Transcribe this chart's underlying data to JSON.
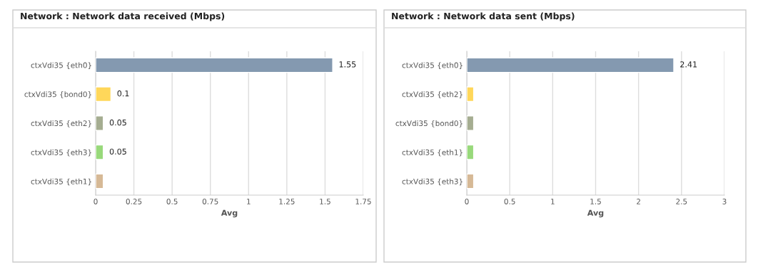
{
  "chart_data": [
    {
      "type": "bar",
      "orientation": "horizontal",
      "title": "Network : Network data received (Mbps)",
      "xlabel": "Avg",
      "categories": [
        "ctxVdi35 {eth0}",
        "ctxVdi35 {bond0}",
        "ctxVdi35 {eth2}",
        "ctxVdi35 {eth3}",
        "ctxVdi35 {eth1}"
      ],
      "values": [
        1.55,
        0.1,
        0.05,
        0.05,
        0.05
      ],
      "value_labels": [
        "1.55",
        "0.1",
        "0.05",
        "0.05",
        null
      ],
      "colors": [
        "#8499b0",
        "#ffd75a",
        "#a5ad91",
        "#98d97b",
        "#d6b996"
      ],
      "xlim": [
        0,
        1.75
      ],
      "xticks": [
        0,
        0.25,
        0.5,
        0.75,
        1,
        1.25,
        1.5,
        1.75
      ],
      "grid": "x"
    },
    {
      "type": "bar",
      "orientation": "horizontal",
      "title": "Network : Network data sent (Mbps)",
      "xlabel": "Avg",
      "categories": [
        "ctxVdi35 {eth0}",
        "ctxVdi35 {eth2}",
        "ctxVdi35 {bond0}",
        "ctxVdi35 {eth1}",
        "ctxVdi35 {eth3}"
      ],
      "values": [
        2.41,
        0.08,
        0.08,
        0.08,
        0.08
      ],
      "value_labels": [
        "2.41",
        null,
        null,
        null,
        null
      ],
      "colors": [
        "#8499b0",
        "#ffd75a",
        "#a5ad91",
        "#98d97b",
        "#d6b996"
      ],
      "xlim": [
        0,
        3
      ],
      "xticks": [
        0,
        0.5,
        1,
        1.5,
        2,
        2.5,
        3
      ],
      "grid": "x"
    }
  ]
}
